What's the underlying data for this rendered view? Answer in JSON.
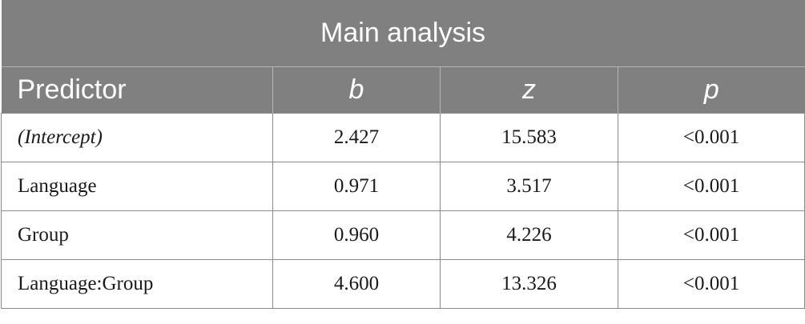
{
  "table": {
    "title": "Main analysis",
    "headers": [
      "Predictor",
      "b",
      "z",
      "p"
    ],
    "rows": [
      {
        "predictor": "(Intercept)",
        "b": "2.427",
        "z": "15.583",
        "p": "<0.001"
      },
      {
        "predictor": "Language",
        "b": "0.971",
        "z": "3.517",
        "p": "<0.001"
      },
      {
        "predictor": "Group",
        "b": "0.960",
        "z": "4.226",
        "p": "<0.001"
      },
      {
        "predictor": "Language:Group",
        "b": "4.600",
        "z": "13.326",
        "p": "<0.001"
      }
    ]
  },
  "colors": {
    "header_bg": "#808080",
    "header_text": "#ffffff",
    "border": "#8a8a8a"
  }
}
